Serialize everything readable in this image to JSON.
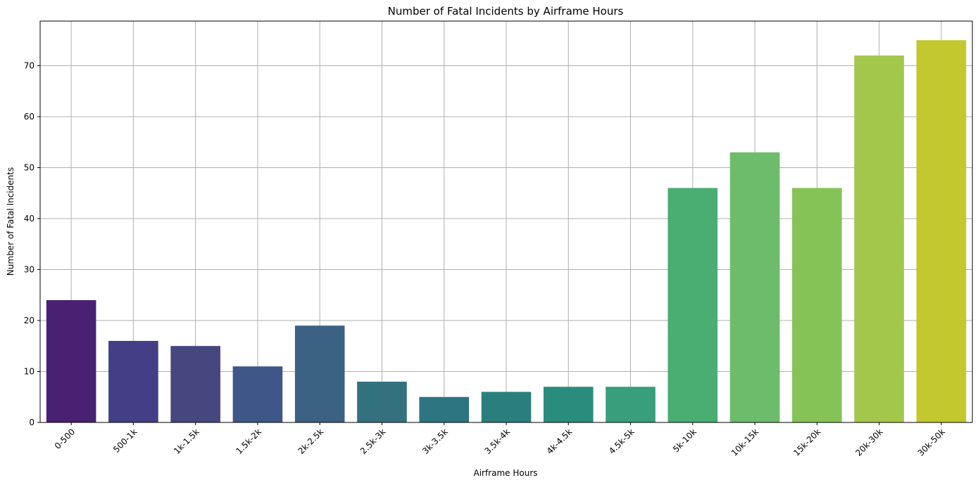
{
  "chart_data": {
    "type": "bar",
    "title": "Number of Fatal Incidents by Airframe Hours",
    "xlabel": "Airframe Hours",
    "ylabel": "Number of Fatal Incidents",
    "categories": [
      "0-500",
      "500-1k",
      "1k-1.5k",
      "1.5k-2k",
      "2k-2.5k",
      "2.5k-3k",
      "3k-3.5k",
      "3.5k-4k",
      "4k-4.5k",
      "4.5k-5k",
      "5k-10k",
      "10k-15k",
      "15k-20k",
      "20k-30k",
      "30k-50k"
    ],
    "values": [
      24,
      16,
      15,
      11,
      19,
      8,
      5,
      6,
      7,
      7,
      46,
      53,
      46,
      72,
      75
    ],
    "colors": [
      "#482173",
      "#433e85",
      "#46477f",
      "#3f5788",
      "#3b6183",
      "#34717f",
      "#2c7581",
      "#2a7f7c",
      "#2a8c7c",
      "#389e7c",
      "#4aad72",
      "#6cbc6c",
      "#85c356",
      "#a3c74a",
      "#c2c82e"
    ],
    "yticks": [
      0,
      10,
      20,
      30,
      40,
      50,
      60,
      70
    ],
    "ylim": [
      0,
      78.75
    ],
    "grid": true,
    "x_tick_rotation": 45
  }
}
